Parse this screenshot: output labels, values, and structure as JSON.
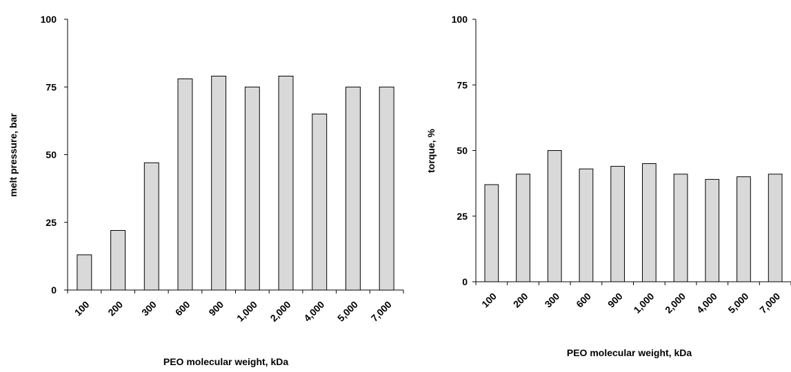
{
  "colors": {
    "bar_fill": "#d9d9d9",
    "bar_stroke": "#000000",
    "axis": "#000000",
    "background": "#ffffff"
  },
  "chart_data": [
    {
      "type": "bar",
      "title": "",
      "xlabel": "PEO molecular weight, kDa",
      "ylabel": "melt pressure, bar",
      "categories": [
        "100",
        "200",
        "300",
        "600",
        "900",
        "1,000",
        "2,000",
        "4,000",
        "5,000",
        "7,000"
      ],
      "values": [
        13,
        22,
        47,
        78,
        79,
        75,
        79,
        65,
        75,
        75
      ],
      "ylim": [
        0,
        100
      ],
      "yticks": [
        "0",
        "25",
        "50",
        "75",
        "100"
      ],
      "grid": false,
      "legend": "none"
    },
    {
      "type": "bar",
      "title": "",
      "xlabel": "PEO molecular weight, kDa",
      "ylabel": "torque, %",
      "categories": [
        "100",
        "200",
        "300",
        "600",
        "900",
        "1,000",
        "2,000",
        "4,000",
        "5,000",
        "7,000"
      ],
      "values": [
        37,
        41,
        50,
        43,
        44,
        45,
        41,
        39,
        40,
        41
      ],
      "ylim": [
        0,
        100
      ],
      "yticks": [
        "0",
        "25",
        "50",
        "75",
        "100"
      ],
      "grid": false,
      "legend": "none"
    }
  ]
}
